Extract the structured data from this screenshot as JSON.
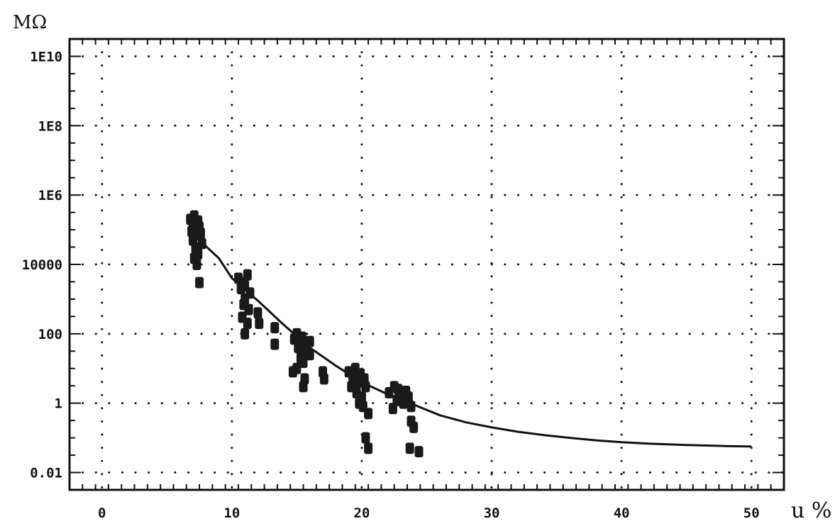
{
  "chart_data": {
    "type": "scatter",
    "title": "",
    "xlabel": "u %",
    "ylabel": "MΩ",
    "xlim": [
      -2.5,
      52.5
    ],
    "ylim_log10": [
      -2.5,
      10.5
    ],
    "y_scale": "log",
    "grid": true,
    "x_ticks": [
      {
        "value": 0,
        "label": "0"
      },
      {
        "value": 10,
        "label": "10"
      },
      {
        "value": 20,
        "label": "20"
      },
      {
        "value": 30,
        "label": "30"
      },
      {
        "value": 40,
        "label": "40"
      },
      {
        "value": 50,
        "label": "50"
      }
    ],
    "y_ticks": [
      {
        "value": 0.01,
        "label": "0.01"
      },
      {
        "value": 1,
        "label": "1"
      },
      {
        "value": 100,
        "label": "100"
      },
      {
        "value": 10000,
        "label": "10000"
      },
      {
        "value": 1000000,
        "label": "1E6"
      },
      {
        "value": 100000000,
        "label": "1E8"
      },
      {
        "value": 10000000000,
        "label": "1E10"
      }
    ],
    "series": [
      {
        "kind": "points",
        "color": "#1a1a1a",
        "points": [
          [
            6.8,
            200000
          ],
          [
            7.0,
            150000
          ],
          [
            7.1,
            250000
          ],
          [
            7.3,
            100000
          ],
          [
            7.4,
            180000
          ],
          [
            7.2,
            70000
          ],
          [
            7.0,
            50000
          ],
          [
            7.5,
            120000
          ],
          [
            6.9,
            90000
          ],
          [
            7.6,
            80000
          ],
          [
            7.2,
            30000
          ],
          [
            7.4,
            20000
          ],
          [
            7.1,
            15000
          ],
          [
            7.7,
            40000
          ],
          [
            7.3,
            10000
          ],
          [
            7.5,
            3000
          ],
          [
            10.5,
            4000
          ],
          [
            10.8,
            3000
          ],
          [
            11.0,
            2500
          ],
          [
            11.2,
            5000
          ],
          [
            10.7,
            2000
          ],
          [
            11.4,
            1500
          ],
          [
            11.0,
            1000
          ],
          [
            10.9,
            700
          ],
          [
            11.3,
            500
          ],
          [
            10.8,
            300
          ],
          [
            11.2,
            200
          ],
          [
            11.0,
            100
          ],
          [
            12.0,
            400
          ],
          [
            12.1,
            200
          ],
          [
            13.3,
            150
          ],
          [
            14.8,
            70
          ],
          [
            15.0,
            100
          ],
          [
            15.2,
            60
          ],
          [
            15.4,
            80
          ],
          [
            15.6,
            50
          ],
          [
            15.1,
            40
          ],
          [
            15.7,
            30
          ],
          [
            15.3,
            20
          ],
          [
            15.5,
            15
          ],
          [
            16.0,
            60
          ],
          [
            15.0,
            10
          ],
          [
            14.7,
            8
          ],
          [
            15.6,
            5
          ],
          [
            15.5,
            3
          ],
          [
            13.3,
            50
          ],
          [
            16.0,
            25
          ],
          [
            17.0,
            8
          ],
          [
            17.1,
            5
          ],
          [
            19.0,
            8
          ],
          [
            19.3,
            6
          ],
          [
            19.5,
            10
          ],
          [
            19.7,
            4
          ],
          [
            19.9,
            7
          ],
          [
            19.2,
            3
          ],
          [
            20.2,
            5
          ],
          [
            19.6,
            2
          ],
          [
            20.0,
            1.5
          ],
          [
            20.3,
            3
          ],
          [
            19.8,
            1
          ],
          [
            20.1,
            0.8
          ],
          [
            20.5,
            0.5
          ],
          [
            20.3,
            0.1
          ],
          [
            20.5,
            0.05
          ],
          [
            22.1,
            2
          ],
          [
            22.5,
            3
          ],
          [
            22.8,
            2.5
          ],
          [
            23.1,
            1.8
          ],
          [
            23.4,
            2.2
          ],
          [
            22.7,
            1.2
          ],
          [
            23.2,
            1
          ],
          [
            23.6,
            1.5
          ],
          [
            23.8,
            0.8
          ],
          [
            22.4,
            0.7
          ],
          [
            23.8,
            0.3
          ],
          [
            24.0,
            0.2
          ],
          [
            23.7,
            0.05
          ],
          [
            24.4,
            0.04
          ]
        ]
      },
      {
        "kind": "curve",
        "color": "#111111",
        "points": [
          [
            7.5,
            50000
          ],
          [
            9,
            15000
          ],
          [
            10,
            4000
          ],
          [
            12,
            900
          ],
          [
            14,
            180
          ],
          [
            16,
            40
          ],
          [
            18,
            12
          ],
          [
            20,
            4
          ],
          [
            22,
            1.8
          ],
          [
            24,
            0.9
          ],
          [
            26,
            0.45
          ],
          [
            28,
            0.28
          ],
          [
            30,
            0.2
          ],
          [
            32,
            0.15
          ],
          [
            34,
            0.12
          ],
          [
            36,
            0.1
          ],
          [
            38,
            0.085
          ],
          [
            40,
            0.075
          ],
          [
            42,
            0.068
          ],
          [
            45,
            0.062
          ],
          [
            48,
            0.058
          ],
          [
            50,
            0.056
          ]
        ]
      }
    ]
  }
}
